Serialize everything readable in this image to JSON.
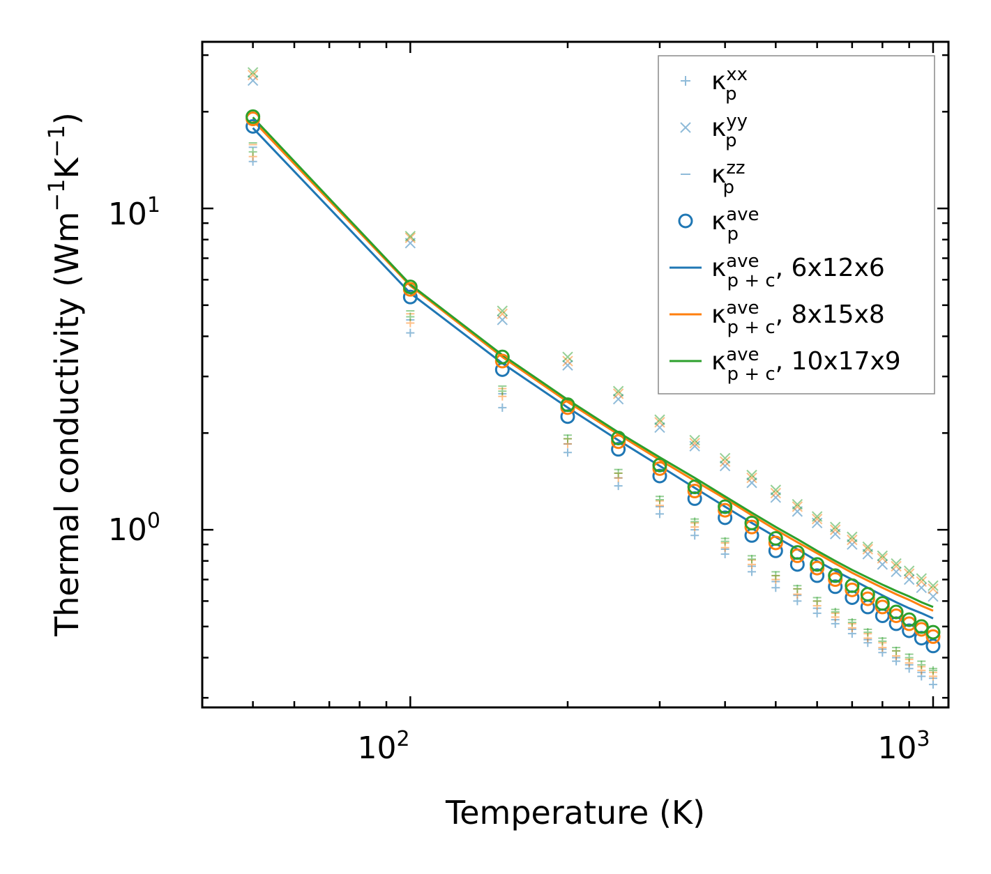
{
  "chart_data": {
    "type": "scatter",
    "xlabel": "Temperature (K)",
    "ylabel": {
      "main": "Thermal conductivity (Wm",
      "exp1": "−1",
      "mid": "K",
      "exp2": "−1",
      "end": ")"
    },
    "xscale": "log",
    "yscale": "log",
    "xlim": [
      40,
      1070
    ],
    "ylim": [
      0.28,
      33
    ],
    "grid": false,
    "legend_position": "top-right",
    "x_ticks": [
      {
        "base": "10",
        "exp": "2"
      },
      {
        "base": "10",
        "exp": "3"
      }
    ],
    "y_ticks": [
      {
        "base": "10",
        "exp": "0"
      },
      {
        "base": "10",
        "exp": "1"
      }
    ],
    "x": [
      50,
      100,
      150,
      200,
      250,
      300,
      350,
      400,
      450,
      500,
      550,
      600,
      650,
      700,
      750,
      800,
      850,
      900,
      950,
      1000
    ],
    "colors": {
      "blue": "#1f77b4",
      "orange": "#ff7f0e",
      "green": "#2ca02c"
    },
    "legend": [
      {
        "sym": "κ",
        "sub": "p",
        "sup": "xx",
        "suffix": ""
      },
      {
        "sym": "κ",
        "sub": "p",
        "sup": "yy",
        "suffix": ""
      },
      {
        "sym": "κ",
        "sub": "p",
        "sup": "zz",
        "suffix": ""
      },
      {
        "sym": "κ",
        "sub": "p",
        "sup": "ave",
        "suffix": ""
      },
      {
        "sym": "κ",
        "sub": "p + c",
        "sup": "ave",
        "suffix": ", 6x12x6"
      },
      {
        "sym": "κ",
        "sub": "p + c",
        "sup": "ave",
        "suffix": ", 8x15x8"
      },
      {
        "sym": "κ",
        "sub": "p + c",
        "sup": "ave",
        "suffix": ", 10x17x9"
      }
    ],
    "series": [
      {
        "name": "6x12x6",
        "color": "blue",
        "kxx": [
          14.0,
          4.1,
          2.4,
          1.74,
          1.37,
          1.12,
          0.96,
          0.84,
          0.74,
          0.66,
          0.6,
          0.55,
          0.51,
          0.475,
          0.445,
          0.415,
          0.39,
          0.37,
          0.35,
          0.33
        ],
        "kyy": [
          25.0,
          7.8,
          4.5,
          3.25,
          2.55,
          2.08,
          1.82,
          1.58,
          1.4,
          1.26,
          1.14,
          1.05,
          0.97,
          0.9,
          0.84,
          0.78,
          0.74,
          0.7,
          0.66,
          0.62
        ],
        "kzz": [
          15.5,
          4.5,
          2.65,
          1.85,
          1.45,
          1.18,
          1.0,
          0.87,
          0.77,
          0.69,
          0.625,
          0.57,
          0.525,
          0.49,
          0.455,
          0.425,
          0.4,
          0.38,
          0.36,
          0.345
        ],
        "kave": [
          18.0,
          5.3,
          3.15,
          2.25,
          1.78,
          1.47,
          1.25,
          1.09,
          0.96,
          0.86,
          0.78,
          0.72,
          0.665,
          0.615,
          0.575,
          0.54,
          0.51,
          0.485,
          0.46,
          0.435
        ],
        "kpc": [
          17.8,
          5.45,
          3.3,
          2.4,
          1.9,
          1.58,
          1.35,
          1.18,
          1.05,
          0.95,
          0.87,
          0.8,
          0.745,
          0.7,
          0.66,
          0.625,
          0.595,
          0.57,
          0.55,
          0.53
        ]
      },
      {
        "name": "8x15x8",
        "color": "orange",
        "kxx": [
          14.5,
          4.4,
          2.6,
          1.85,
          1.45,
          1.19,
          1.02,
          0.88,
          0.78,
          0.7,
          0.63,
          0.58,
          0.535,
          0.495,
          0.46,
          0.43,
          0.405,
          0.385,
          0.365,
          0.35
        ],
        "kyy": [
          26.0,
          8.1,
          4.7,
          3.35,
          2.65,
          2.16,
          1.86,
          1.63,
          1.45,
          1.3,
          1.18,
          1.08,
          1.0,
          0.93,
          0.87,
          0.815,
          0.77,
          0.73,
          0.69,
          0.655
        ],
        "kzz": [
          15.8,
          4.7,
          2.75,
          1.92,
          1.5,
          1.23,
          1.05,
          0.91,
          0.805,
          0.72,
          0.655,
          0.6,
          0.55,
          0.51,
          0.475,
          0.445,
          0.42,
          0.395,
          0.375,
          0.36
        ],
        "kave": [
          19.0,
          5.6,
          3.35,
          2.4,
          1.88,
          1.55,
          1.32,
          1.15,
          1.02,
          0.91,
          0.83,
          0.76,
          0.7,
          0.65,
          0.61,
          0.575,
          0.54,
          0.51,
          0.49,
          0.465
        ],
        "kpc": [
          18.8,
          5.75,
          3.45,
          2.5,
          1.98,
          1.65,
          1.42,
          1.25,
          1.11,
          1.0,
          0.915,
          0.845,
          0.785,
          0.735,
          0.695,
          0.66,
          0.63,
          0.605,
          0.58,
          0.56
        ]
      },
      {
        "name": "10x17x9",
        "color": "green",
        "kxx": [
          15.0,
          4.6,
          2.7,
          1.92,
          1.5,
          1.24,
          1.06,
          0.92,
          0.81,
          0.72,
          0.655,
          0.6,
          0.555,
          0.515,
          0.48,
          0.45,
          0.42,
          0.4,
          0.38,
          0.365
        ],
        "kyy": [
          26.5,
          8.2,
          4.8,
          3.45,
          2.7,
          2.2,
          1.9,
          1.67,
          1.48,
          1.33,
          1.2,
          1.1,
          1.02,
          0.95,
          0.885,
          0.83,
          0.785,
          0.745,
          0.705,
          0.67
        ],
        "kzz": [
          16.0,
          4.8,
          2.8,
          1.97,
          1.54,
          1.27,
          1.08,
          0.94,
          0.83,
          0.74,
          0.67,
          0.615,
          0.565,
          0.525,
          0.49,
          0.46,
          0.43,
          0.41,
          0.39,
          0.37
        ],
        "kave": [
          19.3,
          5.7,
          3.45,
          2.45,
          1.93,
          1.59,
          1.36,
          1.18,
          1.05,
          0.94,
          0.85,
          0.78,
          0.72,
          0.67,
          0.63,
          0.59,
          0.555,
          0.525,
          0.5,
          0.48
        ],
        "kpc": [
          19.2,
          5.8,
          3.5,
          2.54,
          2.01,
          1.68,
          1.45,
          1.27,
          1.13,
          1.02,
          0.935,
          0.86,
          0.8,
          0.75,
          0.71,
          0.675,
          0.645,
          0.62,
          0.595,
          0.575
        ]
      }
    ]
  }
}
